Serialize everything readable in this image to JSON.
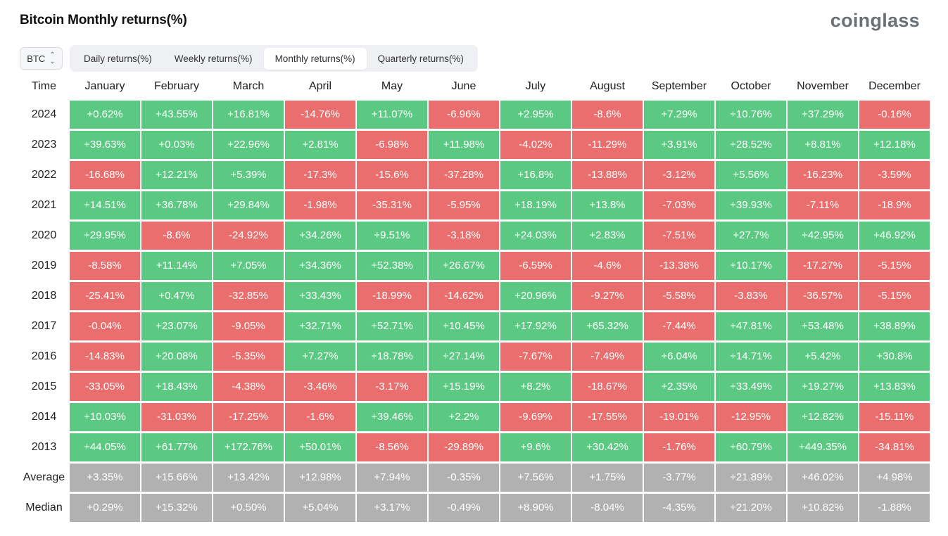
{
  "header": {
    "title": "Bitcoin Monthly returns(%)",
    "brand": "coinglass"
  },
  "asset_select": {
    "value": "BTC",
    "icon": "chevron-up-down-icon"
  },
  "tabs": [
    {
      "label": "Daily returns(%)",
      "active": false
    },
    {
      "label": "Weekly returns(%)",
      "active": false
    },
    {
      "label": "Monthly returns(%)",
      "active": true
    },
    {
      "label": "Quarterly returns(%)",
      "active": false
    }
  ],
  "colors": {
    "positive": "#5cc983",
    "negative": "#ea6e6d",
    "summary": "#b1b1b1"
  },
  "table": {
    "columns": [
      "Time",
      "January",
      "February",
      "March",
      "April",
      "May",
      "June",
      "July",
      "August",
      "September",
      "October",
      "November",
      "December"
    ],
    "rows": [
      {
        "label": "2024",
        "kind": "year",
        "values": [
          "+0.62%",
          "+43.55%",
          "+16.81%",
          "-14.76%",
          "+11.07%",
          "-6.96%",
          "+2.95%",
          "-8.6%",
          "+7.29%",
          "+10.76%",
          "+37.29%",
          "-0.16%"
        ]
      },
      {
        "label": "2023",
        "kind": "year",
        "values": [
          "+39.63%",
          "+0.03%",
          "+22.96%",
          "+2.81%",
          "-6.98%",
          "+11.98%",
          "-4.02%",
          "-11.29%",
          "+3.91%",
          "+28.52%",
          "+8.81%",
          "+12.18%"
        ]
      },
      {
        "label": "2022",
        "kind": "year",
        "values": [
          "-16.68%",
          "+12.21%",
          "+5.39%",
          "-17.3%",
          "-15.6%",
          "-37.28%",
          "+16.8%",
          "-13.88%",
          "-3.12%",
          "+5.56%",
          "-16.23%",
          "-3.59%"
        ]
      },
      {
        "label": "2021",
        "kind": "year",
        "values": [
          "+14.51%",
          "+36.78%",
          "+29.84%",
          "-1.98%",
          "-35.31%",
          "-5.95%",
          "+18.19%",
          "+13.8%",
          "-7.03%",
          "+39.93%",
          "-7.11%",
          "-18.9%"
        ]
      },
      {
        "label": "2020",
        "kind": "year",
        "values": [
          "+29.95%",
          "-8.6%",
          "-24.92%",
          "+34.26%",
          "+9.51%",
          "-3.18%",
          "+24.03%",
          "+2.83%",
          "-7.51%",
          "+27.7%",
          "+42.95%",
          "+46.92%"
        ]
      },
      {
        "label": "2019",
        "kind": "year",
        "values": [
          "-8.58%",
          "+11.14%",
          "+7.05%",
          "+34.36%",
          "+52.38%",
          "+26.67%",
          "-6.59%",
          "-4.6%",
          "-13.38%",
          "+10.17%",
          "-17.27%",
          "-5.15%"
        ]
      },
      {
        "label": "2018",
        "kind": "year",
        "values": [
          "-25.41%",
          "+0.47%",
          "-32.85%",
          "+33.43%",
          "-18.99%",
          "-14.62%",
          "+20.96%",
          "-9.27%",
          "-5.58%",
          "-3.83%",
          "-36.57%",
          "-5.15%"
        ]
      },
      {
        "label": "2017",
        "kind": "year",
        "values": [
          "-0.04%",
          "+23.07%",
          "-9.05%",
          "+32.71%",
          "+52.71%",
          "+10.45%",
          "+17.92%",
          "+65.32%",
          "-7.44%",
          "+47.81%",
          "+53.48%",
          "+38.89%"
        ]
      },
      {
        "label": "2016",
        "kind": "year",
        "values": [
          "-14.83%",
          "+20.08%",
          "-5.35%",
          "+7.27%",
          "+18.78%",
          "+27.14%",
          "-7.67%",
          "-7.49%",
          "+6.04%",
          "+14.71%",
          "+5.42%",
          "+30.8%"
        ]
      },
      {
        "label": "2015",
        "kind": "year",
        "values": [
          "-33.05%",
          "+18.43%",
          "-4.38%",
          "-3.46%",
          "-3.17%",
          "+15.19%",
          "+8.2%",
          "-18.67%",
          "+2.35%",
          "+33.49%",
          "+19.27%",
          "+13.83%"
        ]
      },
      {
        "label": "2014",
        "kind": "year",
        "values": [
          "+10.03%",
          "-31.03%",
          "-17.25%",
          "-1.6%",
          "+39.46%",
          "+2.2%",
          "-9.69%",
          "-17.55%",
          "-19.01%",
          "-12.95%",
          "+12.82%",
          "-15.11%"
        ]
      },
      {
        "label": "2013",
        "kind": "year",
        "values": [
          "+44.05%",
          "+61.77%",
          "+172.76%",
          "+50.01%",
          "-8.56%",
          "-29.89%",
          "+9.6%",
          "+30.42%",
          "-1.76%",
          "+60.79%",
          "+449.35%",
          "-34.81%"
        ]
      },
      {
        "label": "Average",
        "kind": "stat",
        "values": [
          "+3.35%",
          "+15.66%",
          "+13.42%",
          "+12.98%",
          "+7.94%",
          "-0.35%",
          "+7.56%",
          "+1.75%",
          "-3.77%",
          "+21.89%",
          "+46.02%",
          "+4.98%"
        ]
      },
      {
        "label": "Median",
        "kind": "stat",
        "values": [
          "+0.29%",
          "+15.32%",
          "+0.50%",
          "+5.04%",
          "+3.17%",
          "-0.49%",
          "+8.90%",
          "-8.04%",
          "-4.35%",
          "+21.20%",
          "+10.82%",
          "-1.88%"
        ]
      }
    ]
  }
}
